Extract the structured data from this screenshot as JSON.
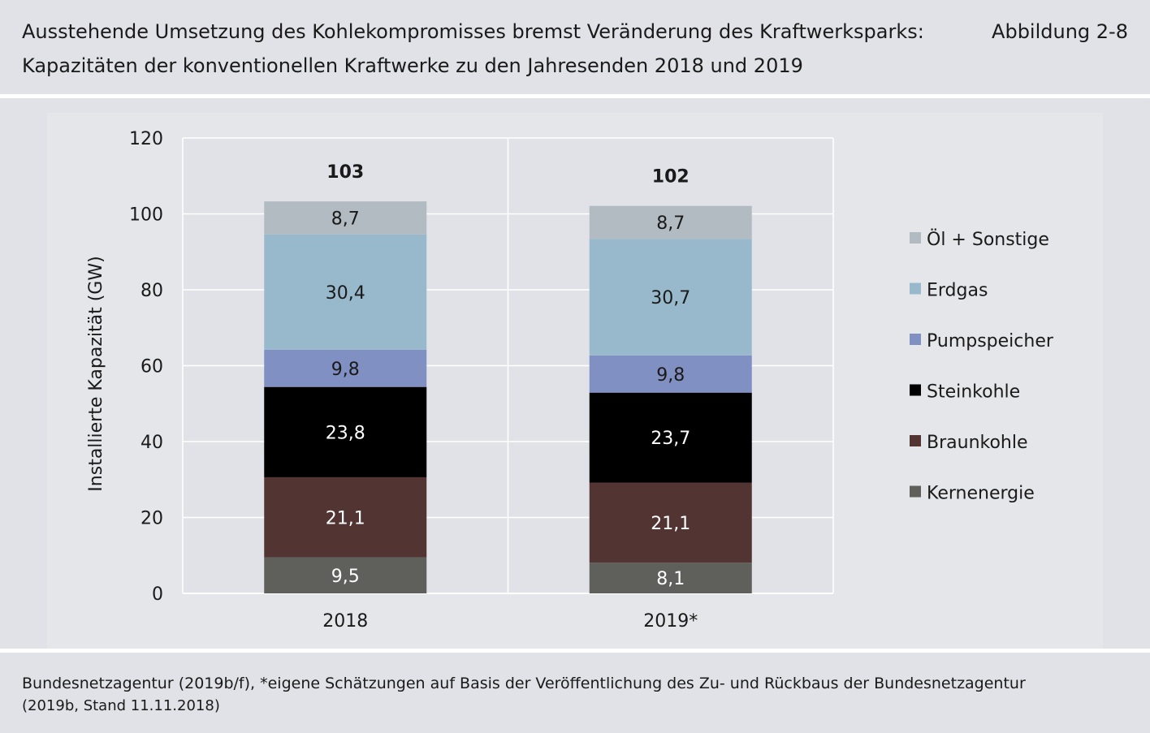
{
  "header": {
    "title_line1": "Ausstehende Umsetzung des Kohlekompromisses bremst Veränderung des Kraftwerksparks:",
    "title_line2": "Kapazitäten der konventionellen Kraftwerke zu den Jahresenden 2018 und 2019",
    "figure_label": "Abbildung 2-8"
  },
  "footer": {
    "source_line1": "Bundesnetzagentur (2019b/f), *eigene Schätzungen auf Basis der Veröffentlichung des Zu- und Rückbaus der Bundesnetzagentur",
    "source_line2": "(2019b, Stand 11.11.2018)"
  },
  "chart_data": {
    "type": "bar",
    "stacked": true,
    "categories": [
      "2018",
      "2019*"
    ],
    "ylabel": "Installierte Kapazität (GW)",
    "ylim": [
      0,
      120
    ],
    "yticks": [
      0,
      20,
      40,
      60,
      80,
      100,
      120
    ],
    "grid": true,
    "legend_position": "right",
    "totals": [
      103,
      102
    ],
    "total_labels": [
      "103",
      "102"
    ],
    "series": [
      {
        "name": "Kernenergie",
        "values": [
          9.5,
          8.1
        ],
        "labels": [
          "9,5",
          "8,1"
        ],
        "color": "#5f605c",
        "text_color": "#ffffff"
      },
      {
        "name": "Braunkohle",
        "values": [
          21.1,
          21.1
        ],
        "labels": [
          "21,1",
          "21,1"
        ],
        "color": "#523532",
        "text_color": "#ffffff"
      },
      {
        "name": "Steinkohle",
        "values": [
          23.8,
          23.7
        ],
        "labels": [
          "23,8",
          "23,7"
        ],
        "color": "#000000",
        "text_color": "#ffffff"
      },
      {
        "name": "Pumpspeicher",
        "values": [
          9.8,
          9.8
        ],
        "labels": [
          "9,8",
          "9,8"
        ],
        "color": "#8090c2",
        "text_color": "#1a1a1a"
      },
      {
        "name": "Erdgas",
        "values": [
          30.4,
          30.7
        ],
        "labels": [
          "30,4",
          "30,7"
        ],
        "color": "#98b9cb",
        "text_color": "#1a1a1a"
      },
      {
        "name": "Öl + Sonstige",
        "values": [
          8.7,
          8.7
        ],
        "labels": [
          "8,7",
          "8,7"
        ],
        "color": "#b2bbc2",
        "text_color": "#1a1a1a"
      }
    ]
  }
}
